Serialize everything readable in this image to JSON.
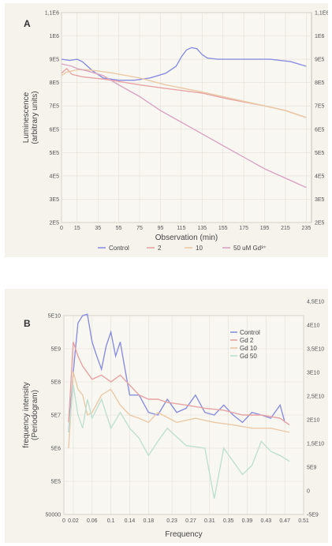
{
  "chart_data": [
    {
      "type": "line",
      "panel_label": "A",
      "xlabel": "Observation (min)",
      "ylabel_lines": [
        "Luminescence",
        "(arbitrary units)"
      ],
      "x_ticks": [
        "0",
        "15",
        "35",
        "55",
        "75",
        "95",
        "115",
        "135",
        "155",
        "175",
        "195",
        "215",
        "235"
      ],
      "x_range": [
        0,
        240
      ],
      "y_ticks": [
        "2E5",
        "3E5",
        "4E5",
        "5E5",
        "6E5",
        "7E5",
        "8E5",
        "9E5",
        "1E6",
        "1,1E6"
      ],
      "y_range": [
        200000,
        1100000
      ],
      "y_right_ticks": [
        "2E5",
        "3E5",
        "4E5",
        "5E5",
        "6E5",
        "7E5",
        "8E5",
        "9E5",
        "1E6",
        "1,1E6"
      ],
      "legend_position": "bottom",
      "series": [
        {
          "name": "Control",
          "color": "#8a8ee0",
          "x": [
            0,
            8,
            15,
            20,
            30,
            40,
            55,
            70,
            85,
            100,
            110,
            115,
            120,
            125,
            130,
            135,
            140,
            150,
            175,
            200,
            220,
            235
          ],
          "y": [
            900000,
            895000,
            900000,
            890000,
            850000,
            820000,
            810000,
            810000,
            820000,
            840000,
            870000,
            910000,
            940000,
            950000,
            945000,
            920000,
            905000,
            900000,
            900000,
            900000,
            890000,
            870000
          ]
        },
        {
          "name": "2",
          "color": "#e7a3a3",
          "x": [
            0,
            5,
            10,
            15,
            20,
            30,
            40,
            55,
            75,
            100,
            135,
            160,
            195,
            215,
            235
          ],
          "y": [
            840000,
            860000,
            835000,
            830000,
            825000,
            820000,
            815000,
            805000,
            790000,
            775000,
            755000,
            730000,
            700000,
            680000,
            650000
          ]
        },
        {
          "name": "10",
          "color": "#e9c9a6",
          "x": [
            0,
            5,
            10,
            15,
            25,
            35,
            50,
            75,
            100,
            135,
            160,
            195,
            215,
            235
          ],
          "y": [
            830000,
            845000,
            850000,
            855000,
            855000,
            850000,
            840000,
            820000,
            790000,
            760000,
            735000,
            700000,
            680000,
            650000
          ]
        },
        {
          "name": "50 uM Gd³⁺",
          "color": "#d9a5c2",
          "x": [
            0,
            10,
            15,
            25,
            40,
            55,
            75,
            95,
            115,
            135,
            155,
            175,
            195,
            215,
            235
          ],
          "y": [
            880000,
            870000,
            860000,
            850000,
            830000,
            790000,
            740000,
            680000,
            630000,
            580000,
            530000,
            480000,
            430000,
            390000,
            350000
          ]
        }
      ]
    },
    {
      "type": "line",
      "panel_label": "B",
      "xlabel": "Frequency",
      "ylabel_lines": [
        "frequency intensity",
        "(Periodogram)"
      ],
      "x_ticks": [
        "0",
        "0.02",
        "0.06",
        "0.1",
        "0.14",
        "0.18",
        "0.23",
        "0.27",
        "0.31",
        "0.35",
        "0.39",
        "0.43",
        "0.47",
        "0.51"
      ],
      "x_range": [
        0,
        0.51
      ],
      "y_ticks": [
        "50000",
        "5E5",
        "5E6",
        "5E7",
        "5E8",
        "5E9",
        "5E10"
      ],
      "y_right_ticks": [
        "-5E9",
        "0",
        "5E9",
        "1,5E10",
        "2E10",
        "2,5E10",
        "3E10",
        "3,5E10",
        "4E10",
        "4,5E10"
      ],
      "y_log_exponent_range": [
        4.699,
        10.699
      ],
      "legend_position": "top-right",
      "series": [
        {
          "name": "Control",
          "color": "#8a8ee0",
          "x": [
            0.01,
            0.02,
            0.03,
            0.04,
            0.05,
            0.06,
            0.07,
            0.08,
            0.09,
            0.1,
            0.11,
            0.12,
            0.13,
            0.14,
            0.16,
            0.18,
            0.2,
            0.22,
            0.24,
            0.26,
            0.28,
            0.3,
            0.32,
            0.34,
            0.36,
            0.38,
            0.4,
            0.42,
            0.44,
            0.46,
            0.47
          ],
          "y": [
            15000000.0,
            1000000000.0,
            30000000000.0,
            50000000000.0,
            55000000000.0,
            8000000000.0,
            3000000000.0,
            1200000000.0,
            6000000000.0,
            16000000000.0,
            3000000000.0,
            8000000000.0,
            1200000000.0,
            200000000.0,
            200000000.0,
            60000000.0,
            50000000.0,
            150000000.0,
            60000000.0,
            80000000.0,
            200000000.0,
            60000000.0,
            50000000.0,
            100000000.0,
            50000000.0,
            30000000.0,
            60000000.0,
            50000000.0,
            40000000.0,
            100000000.0,
            30000000.0
          ]
        },
        {
          "name": "Gd 2",
          "color": "#e7a3a3",
          "x": [
            0.01,
            0.02,
            0.03,
            0.04,
            0.06,
            0.08,
            0.1,
            0.12,
            0.14,
            0.16,
            0.18,
            0.2,
            0.22,
            0.26,
            0.3,
            0.34,
            0.38,
            0.42,
            0.46,
            0.48
          ],
          "y": [
            30000000.0,
            8000000000.0,
            3000000000.0,
            1500000000.0,
            600000000.0,
            800000000.0,
            500000000.0,
            800000000.0,
            400000000.0,
            200000000.0,
            150000000.0,
            150000000.0,
            120000000.0,
            100000000.0,
            80000000.0,
            70000000.0,
            50000000.0,
            50000000.0,
            40000000.0,
            25000000.0
          ]
        },
        {
          "name": "Gd 10",
          "color": "#e9c9a6",
          "x": [
            0.01,
            0.02,
            0.03,
            0.04,
            0.05,
            0.06,
            0.08,
            0.1,
            0.12,
            0.14,
            0.16,
            0.18,
            0.2,
            0.24,
            0.28,
            0.32,
            0.36,
            0.4,
            0.44,
            0.48
          ],
          "y": [
            5000000.0,
            1000000000.0,
            300000000.0,
            200000000.0,
            50000000.0,
            60000000.0,
            200000000.0,
            300000000.0,
            100000000.0,
            50000000.0,
            40000000.0,
            30000000.0,
            60000000.0,
            30000000.0,
            40000000.0,
            30000000.0,
            25000000.0,
            20000000.0,
            20000000.0,
            15000000.0
          ]
        },
        {
          "name": "Gd 50",
          "color": "#bfe0d0",
          "x": [
            0.01,
            0.02,
            0.03,
            0.04,
            0.05,
            0.06,
            0.08,
            0.1,
            0.12,
            0.14,
            0.16,
            0.18,
            0.2,
            0.22,
            0.26,
            0.3,
            0.32,
            0.34,
            0.36,
            0.38,
            0.4,
            0.42,
            0.44,
            0.46,
            0.48
          ],
          "y": [
            15000000.0,
            400000000.0,
            50000000.0,
            20000000.0,
            150000000.0,
            40000000.0,
            150000000.0,
            20000000.0,
            60000000.0,
            20000000.0,
            10000000.0,
            3000000.0,
            8000000.0,
            20000000.0,
            6000000.0,
            5000000.0,
            150000.0,
            5000000.0,
            2000000.0,
            800000.0,
            1500000.0,
            8000000.0,
            4000000.0,
            3000000.0,
            2000000.0
          ]
        }
      ]
    }
  ]
}
